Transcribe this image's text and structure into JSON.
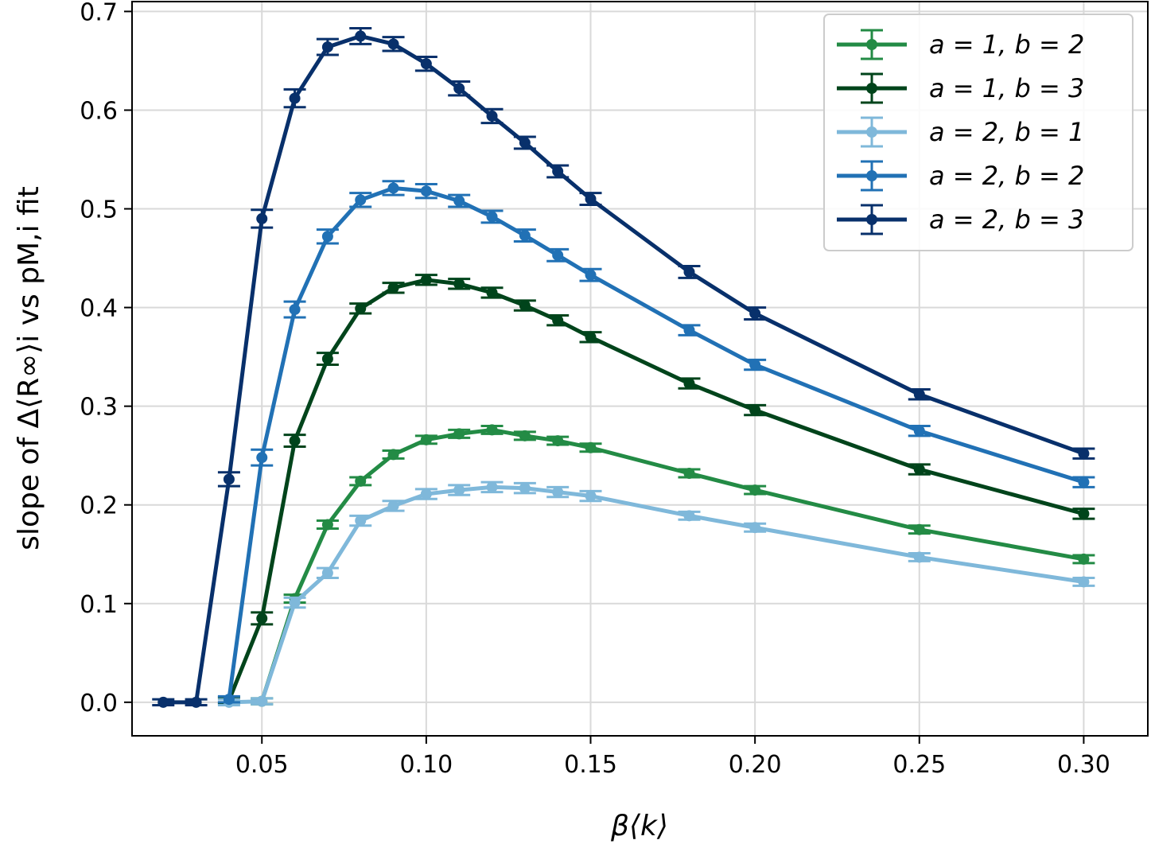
{
  "chart_data": {
    "type": "line",
    "xlabel": "β⟨k⟩",
    "ylabel": "slope of Δ⟨R∞⟩i vs pM,i fit",
    "xlim": [
      0.0105,
      0.3195
    ],
    "ylim": [
      -0.034,
      0.71
    ],
    "xticks": [
      "0.05",
      "0.10",
      "0.15",
      "0.20",
      "0.25",
      "0.30"
    ],
    "yticks": [
      "0.0",
      "0.1",
      "0.2",
      "0.3",
      "0.4",
      "0.5",
      "0.6",
      "0.7"
    ],
    "grid": true,
    "error_bars": true,
    "legend_position": "top-right",
    "series": [
      {
        "name": "a = 1, b = 2",
        "color": "#238b45",
        "x": [
          0.05,
          0.06,
          0.07,
          0.08,
          0.09,
          0.1,
          0.11,
          0.12,
          0.13,
          0.14,
          0.15,
          0.18,
          0.2,
          0.25,
          0.3
        ],
        "y": [
          0.001,
          0.105,
          0.18,
          0.224,
          0.251,
          0.266,
          0.272,
          0.276,
          0.27,
          0.265,
          0.258,
          0.232,
          0.215,
          0.175,
          0.145
        ],
        "err": [
          0.003,
          0.004,
          0.004,
          0.004,
          0.004,
          0.004,
          0.004,
          0.004,
          0.004,
          0.004,
          0.004,
          0.004,
          0.004,
          0.004,
          0.004
        ]
      },
      {
        "name": "a = 1, b = 3",
        "color": "#00441b",
        "x": [
          0.04,
          0.05,
          0.06,
          0.07,
          0.08,
          0.09,
          0.1,
          0.11,
          0.12,
          0.13,
          0.14,
          0.15,
          0.18,
          0.2,
          0.25,
          0.3
        ],
        "y": [
          0.002,
          0.085,
          0.265,
          0.348,
          0.399,
          0.42,
          0.428,
          0.424,
          0.415,
          0.402,
          0.387,
          0.37,
          0.323,
          0.296,
          0.236,
          0.191
        ],
        "err": [
          0.003,
          0.006,
          0.006,
          0.006,
          0.005,
          0.005,
          0.005,
          0.005,
          0.005,
          0.005,
          0.005,
          0.005,
          0.005,
          0.005,
          0.005,
          0.005
        ]
      },
      {
        "name": "a = 2, b = 1",
        "color": "#7fb8da",
        "x": [
          0.04,
          0.05,
          0.06,
          0.07,
          0.08,
          0.09,
          0.1,
          0.11,
          0.12,
          0.13,
          0.14,
          0.15,
          0.18,
          0.2,
          0.25,
          0.3
        ],
        "y": [
          0.0,
          0.001,
          0.101,
          0.131,
          0.184,
          0.199,
          0.211,
          0.215,
          0.218,
          0.217,
          0.213,
          0.209,
          0.189,
          0.177,
          0.147,
          0.122
        ],
        "err": [
          0.003,
          0.003,
          0.005,
          0.005,
          0.005,
          0.005,
          0.005,
          0.005,
          0.005,
          0.005,
          0.005,
          0.005,
          0.004,
          0.004,
          0.004,
          0.004
        ]
      },
      {
        "name": "a = 2, b = 2",
        "color": "#2171b5",
        "x": [
          0.04,
          0.05,
          0.06,
          0.07,
          0.08,
          0.09,
          0.1,
          0.11,
          0.12,
          0.13,
          0.14,
          0.15,
          0.18,
          0.2,
          0.25,
          0.3
        ],
        "y": [
          0.003,
          0.248,
          0.398,
          0.472,
          0.509,
          0.521,
          0.518,
          0.508,
          0.492,
          0.473,
          0.453,
          0.433,
          0.377,
          0.342,
          0.275,
          0.223
        ],
        "err": [
          0.003,
          0.008,
          0.008,
          0.007,
          0.007,
          0.007,
          0.007,
          0.006,
          0.006,
          0.006,
          0.006,
          0.006,
          0.005,
          0.005,
          0.005,
          0.005
        ]
      },
      {
        "name": "a = 2, b = 3",
        "color": "#08306b",
        "x": [
          0.02,
          0.03,
          0.04,
          0.05,
          0.06,
          0.07,
          0.08,
          0.09,
          0.1,
          0.11,
          0.12,
          0.13,
          0.14,
          0.15,
          0.18,
          0.2,
          0.25,
          0.3
        ],
        "y": [
          0.0,
          0.0,
          0.226,
          0.49,
          0.612,
          0.664,
          0.675,
          0.667,
          0.647,
          0.622,
          0.594,
          0.567,
          0.538,
          0.51,
          0.436,
          0.394,
          0.312,
          0.252
        ],
        "err": [
          0.003,
          0.003,
          0.007,
          0.009,
          0.009,
          0.008,
          0.008,
          0.007,
          0.007,
          0.007,
          0.007,
          0.006,
          0.006,
          0.006,
          0.006,
          0.006,
          0.005,
          0.005
        ]
      }
    ]
  }
}
